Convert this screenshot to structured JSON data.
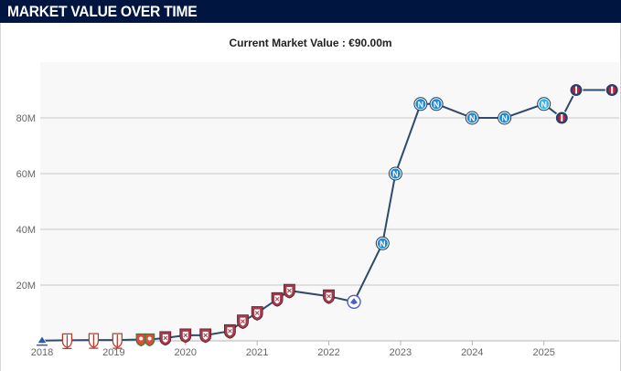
{
  "header": {
    "title": "MARKET VALUE OVER TIME"
  },
  "colors": {
    "header_bg": "#001641",
    "line": "#2f4a6b",
    "plot_bg": "#f8f8f8",
    "gridline": "#c9c9c9",
    "club_napoli": "#1f8ad6",
    "club_napoli_light": "#2fb6ea",
    "club_red": "#a33a4a",
    "club_psg": "#2b3f6e"
  },
  "chart_data": {
    "type": "line",
    "title": "Current Market Value : €90.00m",
    "xlabel": "",
    "ylabel": "",
    "x_unit": "year",
    "xlim": [
      2018.0,
      2025.95
    ],
    "ylim": [
      0,
      95
    ],
    "y_unit": "€m",
    "grid": true,
    "x_ticks": [
      {
        "value": 2018,
        "label": "2018"
      },
      {
        "value": 2019,
        "label": "2019"
      },
      {
        "value": 2020,
        "label": "2020"
      },
      {
        "value": 2021,
        "label": "2021"
      },
      {
        "value": 2022,
        "label": "2022"
      },
      {
        "value": 2023,
        "label": "2023"
      },
      {
        "value": 2024,
        "label": "2024"
      },
      {
        "value": 2025,
        "label": "2025"
      }
    ],
    "y_ticks": [
      {
        "value": 20,
        "label": "20M"
      },
      {
        "value": 40,
        "label": "40M"
      },
      {
        "value": 60,
        "label": "60M"
      },
      {
        "value": 80,
        "label": "80M"
      }
    ],
    "series": [
      {
        "points": [
          {
            "x": 2018.0,
            "y": 0.1,
            "club": "blue-small"
          },
          {
            "x": 2018.35,
            "y": 0.2,
            "club": "red-white"
          },
          {
            "x": 2018.72,
            "y": 0.3,
            "club": "red-white"
          },
          {
            "x": 2019.05,
            "y": 0.3,
            "club": "red-white"
          },
          {
            "x": 2019.38,
            "y": 0.5,
            "club": "red-green"
          },
          {
            "x": 2019.5,
            "y": 0.5,
            "club": "red-green"
          },
          {
            "x": 2019.72,
            "y": 1.0,
            "club": "red-shield"
          },
          {
            "x": 2020.0,
            "y": 2.0,
            "club": "red-shield"
          },
          {
            "x": 2020.28,
            "y": 2.0,
            "club": "red-shield"
          },
          {
            "x": 2020.62,
            "y": 3.5,
            "club": "red-shield"
          },
          {
            "x": 2020.8,
            "y": 7.0,
            "club": "red-shield"
          },
          {
            "x": 2021.0,
            "y": 10.0,
            "club": "red-shield"
          },
          {
            "x": 2021.28,
            "y": 15.0,
            "club": "red-shield"
          },
          {
            "x": 2021.45,
            "y": 18.0,
            "club": "red-shield"
          },
          {
            "x": 2022.0,
            "y": 16.0,
            "club": "red-shield"
          },
          {
            "x": 2022.35,
            "y": 14.0,
            "club": "blue-eagle"
          },
          {
            "x": 2022.75,
            "y": 35.0,
            "club": "napoli"
          },
          {
            "x": 2022.93,
            "y": 60.0,
            "club": "napoli"
          },
          {
            "x": 2023.28,
            "y": 85.0,
            "club": "napoli"
          },
          {
            "x": 2023.5,
            "y": 85.0,
            "club": "napoli"
          },
          {
            "x": 2024.0,
            "y": 80.0,
            "club": "napoli"
          },
          {
            "x": 2024.45,
            "y": 80.0,
            "club": "napoli"
          },
          {
            "x": 2025.0,
            "y": 85.0,
            "club": "napoli-light"
          },
          {
            "x": 2025.25,
            "y": 80.0,
            "club": "psg"
          },
          {
            "x": 2025.45,
            "y": 90.0,
            "club": "psg"
          },
          {
            "x": 2025.95,
            "y": 90.0,
            "club": "psg"
          }
        ]
      }
    ]
  }
}
